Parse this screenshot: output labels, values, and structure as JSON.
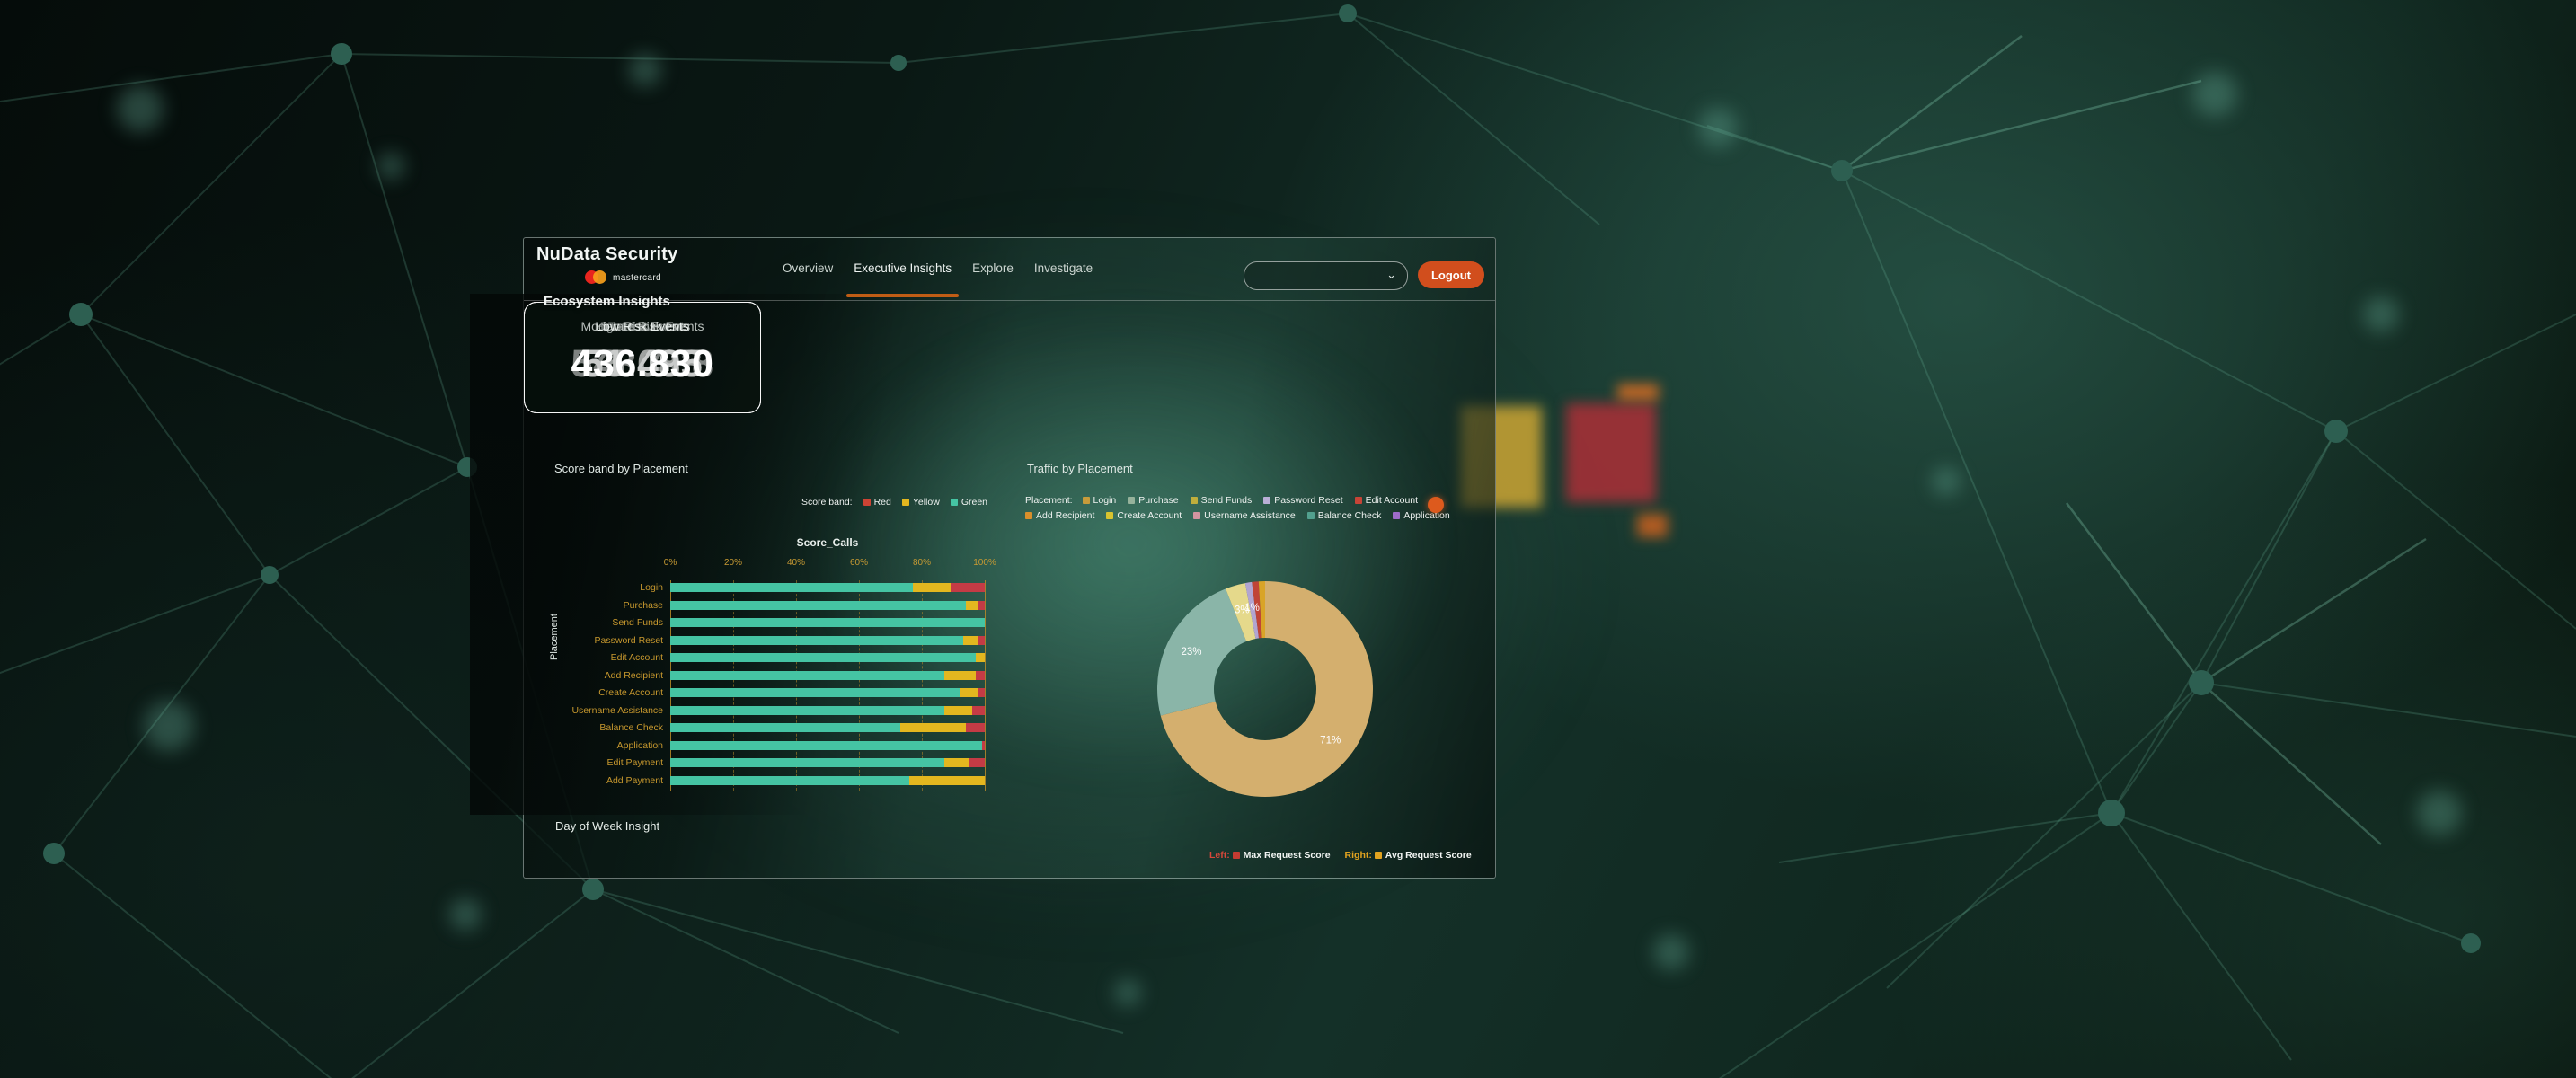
{
  "header": {
    "brand": "NuData Security",
    "brand_sub": "mastercard",
    "nav": [
      {
        "label": "Overview"
      },
      {
        "label": "Executive Insights"
      },
      {
        "label": "Explore"
      },
      {
        "label": "Investigate"
      }
    ],
    "dropdown_value": "",
    "logout_label": "Logout"
  },
  "ecosystem": {
    "heading": "Ecosystem Insights",
    "kpis": [
      {
        "label": "Total Events",
        "value": "543.408"
      },
      {
        "label": "High Risk Events",
        "value": "55.083"
      },
      {
        "label": "Moderate Risk Events",
        "value": "51.495"
      },
      {
        "label": "Low Risk Events",
        "value": "436.830"
      }
    ]
  },
  "score_band": {
    "title": "Score band by Placement",
    "legend_label": "Score band:",
    "legend": [
      {
        "label": "Red",
        "color": "#cd4334"
      },
      {
        "label": "Yellow",
        "color": "#e3b71f"
      },
      {
        "label": "Green",
        "color": "#45c4a3"
      }
    ]
  },
  "traffic": {
    "title": "Traffic by Placement",
    "legend_label": "Placement:",
    "legend": [
      {
        "label": "Login",
        "color": "#c79b3b"
      },
      {
        "label": "Purchase",
        "color": "#96b29b"
      },
      {
        "label": "Send Funds",
        "color": "#bfae3c"
      },
      {
        "label": "Password Reset",
        "color": "#b9aed6"
      },
      {
        "label": "Edit Account",
        "color": "#c64437"
      },
      {
        "label": "Add Recipient",
        "color": "#d98f2b"
      },
      {
        "label": "Create Account",
        "color": "#d8c32f"
      },
      {
        "label": "Username Assistance",
        "color": "#d494a0"
      },
      {
        "label": "Balance Check",
        "color": "#52a08e"
      },
      {
        "label": "Application",
        "color": "#9c6bc9"
      }
    ],
    "badge_color": "#dd5a1d"
  },
  "day_of_week": {
    "title": "Day of Week Insight"
  },
  "bottom_legend": {
    "left_label": "Left:",
    "left_entry": "Max Request Score",
    "left_color": "#c53b32",
    "right_label": "Right:",
    "right_entry": "Avg Request Score",
    "right_color": "#e2a31f"
  },
  "chart_data": [
    {
      "type": "bar",
      "stacked": true,
      "orientation": "horizontal",
      "title": "Score_Calls",
      "xlabel": "Score_Calls",
      "ylabel": "Placement",
      "xlim": [
        0,
        100
      ],
      "x_ticks": [
        "0%",
        "20%",
        "40%",
        "60%",
        "80%",
        "100%"
      ],
      "grid": true,
      "categories": [
        "Login",
        "Purchase",
        "Send Funds",
        "Password Reset",
        "Edit Account",
        "Add Recipient",
        "Create Account",
        "Username Assistance",
        "Balance Check",
        "Application",
        "Edit Payment",
        "Add Payment"
      ],
      "series": [
        {
          "name": "Green",
          "color": "#45c4a3",
          "values": [
            77,
            94,
            100,
            93,
            97,
            87,
            92,
            87,
            73,
            99,
            87,
            76
          ]
        },
        {
          "name": "Yellow",
          "color": "#e3b71f",
          "values": [
            12,
            4,
            0,
            5,
            3,
            10,
            6,
            9,
            21,
            0,
            8,
            24
          ]
        },
        {
          "name": "Red",
          "color": "#c43b45",
          "values": [
            11,
            2,
            0,
            2,
            0,
            3,
            2,
            4,
            6,
            1,
            5,
            0
          ]
        }
      ]
    },
    {
      "type": "pie",
      "donut": true,
      "title": "Traffic by Placement",
      "legend_position": "top",
      "slices": [
        {
          "name": "Login",
          "value": 71,
          "label": "71%",
          "color": "#d4af6e"
        },
        {
          "name": "Balance Check",
          "value": 23,
          "label": "23%",
          "color": "#8ab5a8"
        },
        {
          "name": "Send Funds",
          "value": 3,
          "label": "3%",
          "color": "#e5d98b"
        },
        {
          "name": "Password Reset",
          "value": 1,
          "label": "1%",
          "color": "#b2a5d1"
        },
        {
          "name": "Edit Account",
          "value": 1,
          "label": "",
          "color": "#c04437"
        },
        {
          "name": "Add Recipient",
          "value": 1,
          "label": "",
          "color": "#d9a427"
        }
      ]
    }
  ]
}
